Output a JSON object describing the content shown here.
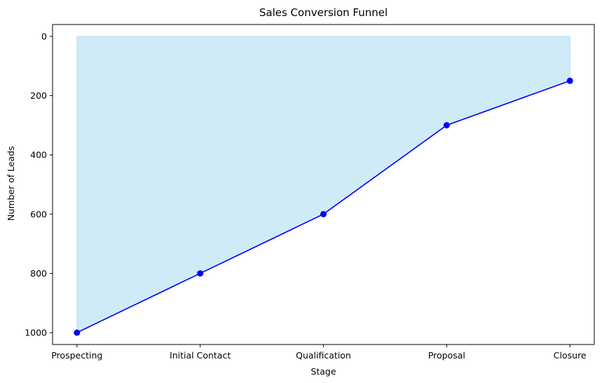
{
  "chart_data": {
    "type": "area",
    "title": "Sales Conversion Funnel",
    "xlabel": "Stage",
    "ylabel": "Number of Leads",
    "categories": [
      "Prospecting",
      "Initial Contact",
      "Qualification",
      "Proposal",
      "Closure"
    ],
    "series": [
      {
        "values": [
          1000,
          800,
          600,
          300,
          150
        ]
      }
    ],
    "ylim": [
      1040,
      -40
    ],
    "y_inverted": true,
    "yticks": [
      0,
      200,
      400,
      600,
      800,
      1000
    ],
    "grid": false,
    "colors": {
      "line": "#0000ff",
      "marker": "#0000ff",
      "fill": "#87ceeb"
    }
  }
}
